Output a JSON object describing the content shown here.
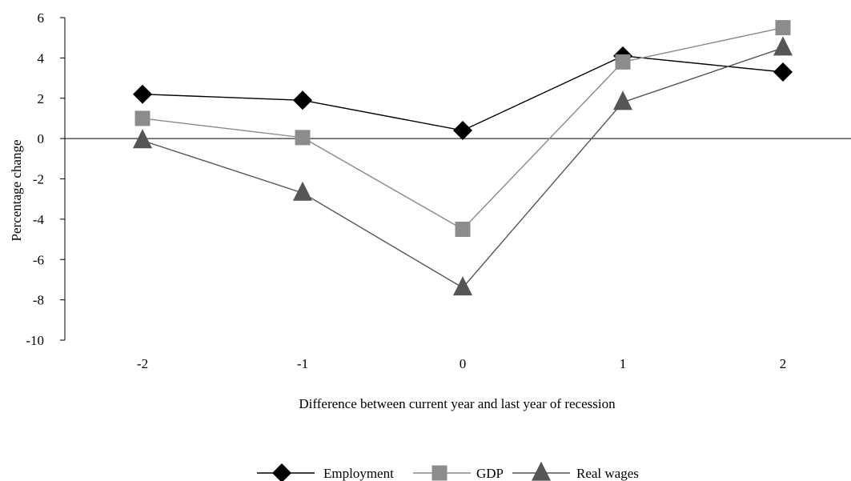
{
  "chart_data": {
    "type": "line",
    "title": "",
    "xlabel": "Difference between current year and last year of recession",
    "ylabel": "Percentage change",
    "categories": [
      "-2",
      "-1",
      "0",
      "1",
      "2"
    ],
    "ylim": [
      -10,
      6
    ],
    "yticks": [
      "6",
      "4",
      "2",
      "0",
      "-2",
      "-4",
      "-6",
      "-8",
      "-10"
    ],
    "grid": false,
    "legend_position": "bottom",
    "series": [
      {
        "name": "Employment",
        "marker": "diamond",
        "line_color": "#000000",
        "marker_color": "#000000",
        "values": [
          2.2,
          1.9,
          0.4,
          4.1,
          3.3
        ]
      },
      {
        "name": "GDP",
        "marker": "square",
        "line_color": "#888888",
        "marker_color": "#8c8c8c",
        "values": [
          1.0,
          0.05,
          -4.5,
          3.8,
          5.5
        ]
      },
      {
        "name": "Real wages",
        "marker": "triangle",
        "line_color": "#555555",
        "marker_color": "#555555",
        "values": [
          -0.1,
          -2.7,
          -7.4,
          1.8,
          4.5
        ]
      }
    ]
  }
}
